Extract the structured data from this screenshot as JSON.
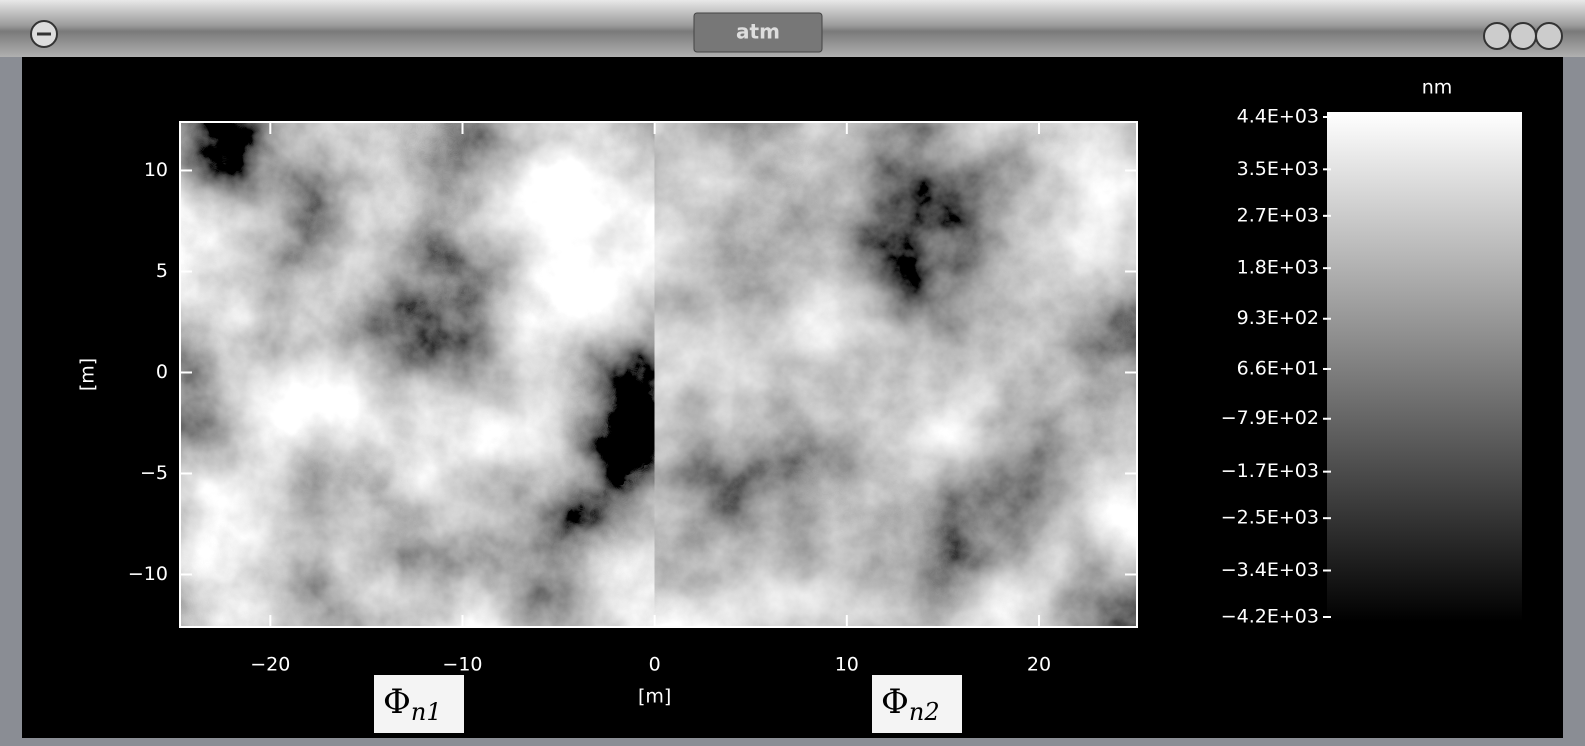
{
  "window": {
    "title": "atm"
  },
  "chart_data": {
    "type": "heatmap",
    "xlabel": "[m]",
    "ylabel": "[m]",
    "xlim": [
      -24.7,
      25.1
    ],
    "ylim": [
      -12.6,
      12.4
    ],
    "xticks": [
      {
        "value": -20,
        "label": "−20"
      },
      {
        "value": -10,
        "label": "−10"
      },
      0,
      10,
      20
    ],
    "yticks": [
      {
        "value": -10,
        "label": "−10"
      },
      {
        "value": -5,
        "label": "−5"
      },
      0,
      5,
      10
    ],
    "colorbar": {
      "title": "nm",
      "lim": [
        -4200,
        4400
      ],
      "ticks": [
        {
          "value": 4400,
          "label": "4.4E+03"
        },
        {
          "value": 3500,
          "label": "3.5E+03"
        },
        {
          "value": 2700,
          "label": "2.7E+03"
        },
        {
          "value": 1800,
          "label": "1.8E+03"
        },
        {
          "value": 930,
          "label": "9.3E+02"
        },
        {
          "value": 66,
          "label": "6.6E+01"
        },
        {
          "value": -790,
          "label": "−7.9E+02"
        },
        {
          "value": -1700,
          "label": "−1.7E+03"
        },
        {
          "value": -2500,
          "label": "−2.5E+03"
        },
        {
          "value": -3400,
          "label": "−3.4E+03"
        },
        {
          "value": -4200,
          "label": "−4.2E+03"
        }
      ]
    },
    "annotations": [
      {
        "symbol": "Φ",
        "subscript": "n1"
      },
      {
        "symbol": "Φ",
        "subscript": "n2"
      }
    ]
  }
}
